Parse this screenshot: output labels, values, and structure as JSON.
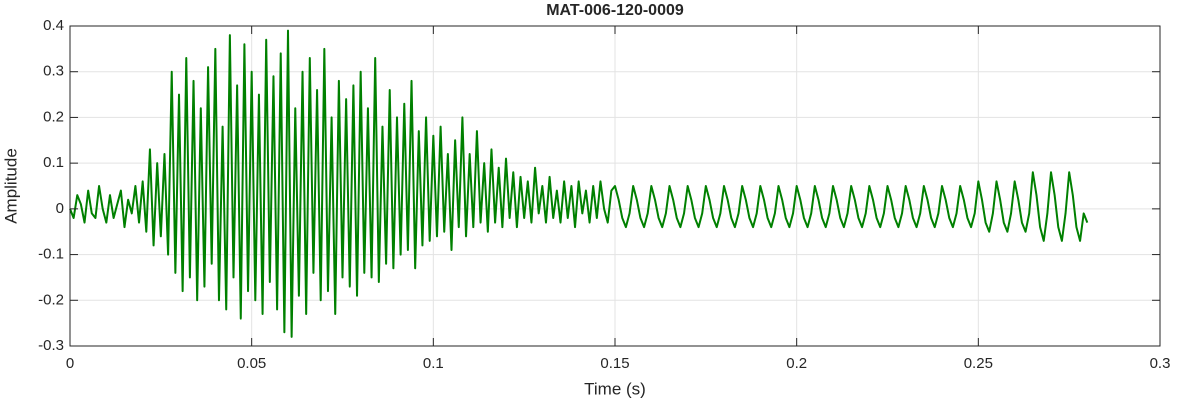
{
  "chart_data": {
    "type": "line",
    "title": "MAT-006-120-0009",
    "x_label": "Time (s)",
    "y_label": "Amplitude",
    "x": [
      0,
      0.001,
      0.002,
      0.003,
      0.004,
      0.005,
      0.006,
      0.007,
      0.008,
      0.009,
      0.01,
      0.011,
      0.012,
      0.013,
      0.014,
      0.015,
      0.016,
      0.017,
      0.018,
      0.019,
      0.02,
      0.021,
      0.022,
      0.023,
      0.024,
      0.025,
      0.026,
      0.027,
      0.028,
      0.029,
      0.03,
      0.031,
      0.032,
      0.033,
      0.034,
      0.035,
      0.036,
      0.037,
      0.038,
      0.039,
      0.04,
      0.041,
      0.042,
      0.043,
      0.044,
      0.045,
      0.046,
      0.047,
      0.048,
      0.049,
      0.05,
      0.051,
      0.052,
      0.053,
      0.054,
      0.055,
      0.056,
      0.057,
      0.058,
      0.059,
      0.06,
      0.061,
      0.062,
      0.063,
      0.064,
      0.065,
      0.066,
      0.067,
      0.068,
      0.069,
      0.07,
      0.071,
      0.072,
      0.073,
      0.074,
      0.075,
      0.076,
      0.077,
      0.078,
      0.079,
      0.08,
      0.081,
      0.082,
      0.083,
      0.084,
      0.085,
      0.086,
      0.087,
      0.088,
      0.089,
      0.09,
      0.091,
      0.092,
      0.093,
      0.094,
      0.095,
      0.096,
      0.097,
      0.098,
      0.099,
      0.1,
      0.101,
      0.102,
      0.103,
      0.104,
      0.105,
      0.106,
      0.107,
      0.108,
      0.109,
      0.11,
      0.111,
      0.112,
      0.113,
      0.114,
      0.115,
      0.116,
      0.117,
      0.118,
      0.119,
      0.12,
      0.121,
      0.122,
      0.123,
      0.124,
      0.125,
      0.126,
      0.127,
      0.128,
      0.129,
      0.13,
      0.131,
      0.132,
      0.133,
      0.134,
      0.135,
      0.136,
      0.137,
      0.138,
      0.139,
      0.14,
      0.141,
      0.142,
      0.143,
      0.144,
      0.145,
      0.146,
      0.147,
      0.148,
      0.149,
      0.15,
      0.151,
      0.152,
      0.153,
      0.154,
      0.155,
      0.156,
      0.157,
      0.158,
      0.159,
      0.16,
      0.161,
      0.162,
      0.163,
      0.164,
      0.165,
      0.166,
      0.167,
      0.168,
      0.169,
      0.17,
      0.171,
      0.172,
      0.173,
      0.174,
      0.175,
      0.176,
      0.177,
      0.178,
      0.179,
      0.18,
      0.181,
      0.182,
      0.183,
      0.184,
      0.185,
      0.186,
      0.187,
      0.188,
      0.189,
      0.19,
      0.191,
      0.192,
      0.193,
      0.194,
      0.195,
      0.196,
      0.197,
      0.198,
      0.199,
      0.2,
      0.201,
      0.202,
      0.203,
      0.204,
      0.205,
      0.206,
      0.207,
      0.208,
      0.209,
      0.21,
      0.211,
      0.212,
      0.213,
      0.214,
      0.215,
      0.216,
      0.217,
      0.218,
      0.219,
      0.22,
      0.221,
      0.222,
      0.223,
      0.224,
      0.225,
      0.226,
      0.227,
      0.228,
      0.229,
      0.23,
      0.231,
      0.232,
      0.233,
      0.234,
      0.235,
      0.236,
      0.237,
      0.238,
      0.239,
      0.24,
      0.241,
      0.242,
      0.243,
      0.244,
      0.245,
      0.246,
      0.247,
      0.248,
      0.249,
      0.25,
      0.251,
      0.252,
      0.253,
      0.254,
      0.255,
      0.256,
      0.257,
      0.258,
      0.259,
      0.26,
      0.261,
      0.262,
      0.263,
      0.264,
      0.265,
      0.266,
      0.267,
      0.268,
      0.269,
      0.27,
      0.271,
      0.272,
      0.273,
      0.274,
      0.275,
      0.276,
      0.277,
      0.278,
      0.279,
      0.28
    ],
    "values": [
      0,
      -0.02,
      0.03,
      0.01,
      -0.03,
      0.04,
      -0.01,
      -0.02,
      0.05,
      0,
      -0.03,
      0.03,
      -0.02,
      0.01,
      0.04,
      -0.04,
      0.02,
      -0.01,
      0.05,
      -0.03,
      0.06,
      -0.05,
      0.13,
      -0.08,
      0.1,
      -0.06,
      0.12,
      -0.1,
      0.3,
      -0.14,
      0.25,
      -0.18,
      0.33,
      -0.15,
      0.28,
      -0.2,
      0.22,
      -0.17,
      0.31,
      -0.12,
      0.35,
      -0.2,
      0.18,
      -0.22,
      0.38,
      -0.15,
      0.27,
      -0.24,
      0.36,
      -0.18,
      0.3,
      -0.2,
      0.25,
      -0.23,
      0.37,
      -0.16,
      0.29,
      -0.22,
      0.34,
      -0.27,
      0.39,
      -0.28,
      0.22,
      -0.19,
      0.3,
      -0.23,
      0.33,
      -0.14,
      0.26,
      -0.2,
      0.35,
      -0.18,
      0.2,
      -0.23,
      0.28,
      -0.15,
      0.24,
      -0.17,
      0.27,
      -0.19,
      0.3,
      -0.14,
      0.22,
      -0.15,
      0.33,
      -0.16,
      0.18,
      -0.12,
      0.26,
      -0.13,
      0.2,
      -0.1,
      0.23,
      -0.09,
      0.28,
      -0.13,
      0.17,
      -0.08,
      0.2,
      -0.07,
      0.16,
      -0.06,
      0.18,
      -0.05,
      0.12,
      -0.09,
      0.15,
      -0.04,
      0.2,
      -0.06,
      0.12,
      -0.04,
      0.17,
      -0.03,
      0.1,
      -0.05,
      0.13,
      -0.03,
      0.09,
      -0.04,
      0.11,
      -0.02,
      0.08,
      -0.04,
      0.07,
      -0.02,
      0.06,
      -0.03,
      0.09,
      -0.01,
      0.05,
      -0.03,
      0.07,
      -0.02,
      0.04,
      -0.03,
      0.06,
      -0.02,
      0.05,
      -0.04,
      0.06,
      -0.01,
      0.04,
      -0.03,
      0.05,
      -0.02,
      0.06,
      0,
      -0.03,
      0.04,
      0.05,
      0.02,
      -0.02,
      -0.04,
      -0.01,
      0.05,
      0.02,
      -0.02,
      -0.04,
      -0.01,
      0.05,
      0.02,
      -0.02,
      -0.04,
      -0.01,
      0.05,
      0.02,
      -0.02,
      -0.04,
      -0.01,
      0.05,
      0.02,
      -0.02,
      -0.04,
      -0.01,
      0.05,
      0.02,
      -0.02,
      -0.04,
      -0.01,
      0.05,
      0.02,
      -0.02,
      -0.04,
      -0.01,
      0.05,
      0.02,
      -0.02,
      -0.04,
      -0.01,
      0.05,
      0.02,
      -0.02,
      -0.04,
      -0.01,
      0.05,
      0.02,
      -0.02,
      -0.04,
      -0.01,
      0.05,
      0.02,
      -0.02,
      -0.04,
      -0.01,
      0.05,
      0.02,
      -0.02,
      -0.04,
      -0.01,
      0.05,
      0.02,
      -0.02,
      -0.04,
      -0.01,
      0.05,
      0.02,
      -0.02,
      -0.04,
      -0.01,
      0.05,
      0.02,
      -0.02,
      -0.04,
      -0.01,
      0.05,
      0.02,
      -0.02,
      -0.04,
      -0.01,
      0.05,
      0.02,
      -0.02,
      -0.04,
      -0.01,
      0.05,
      0.02,
      -0.02,
      -0.04,
      -0.01,
      0.05,
      0.02,
      -0.02,
      -0.04,
      -0.01,
      0.05,
      0.02,
      -0.02,
      -0.04,
      -0.01,
      0.06,
      0.02,
      -0.03,
      -0.05,
      -0.01,
      0.06,
      0.02,
      -0.03,
      -0.05,
      -0.01,
      0.06,
      0.02,
      -0.03,
      -0.05,
      -0.01,
      0.08,
      0.03,
      -0.04,
      -0.07,
      -0.01,
      0.08,
      0.03,
      -0.04,
      -0.07,
      -0.01,
      0.08,
      0.03,
      -0.04,
      -0.07,
      -0.01,
      -0.03
    ],
    "color": "#008000",
    "xlim": [
      0,
      0.3
    ],
    "xticks": [
      0,
      0.05,
      0.1,
      0.15,
      0.2,
      0.25,
      0.3
    ],
    "ylim": [
      -0.3,
      0.4
    ],
    "yticks": [
      -0.3,
      -0.2,
      -0.1,
      0,
      0.1,
      0.2,
      0.3,
      0.4
    ],
    "grid": true
  }
}
